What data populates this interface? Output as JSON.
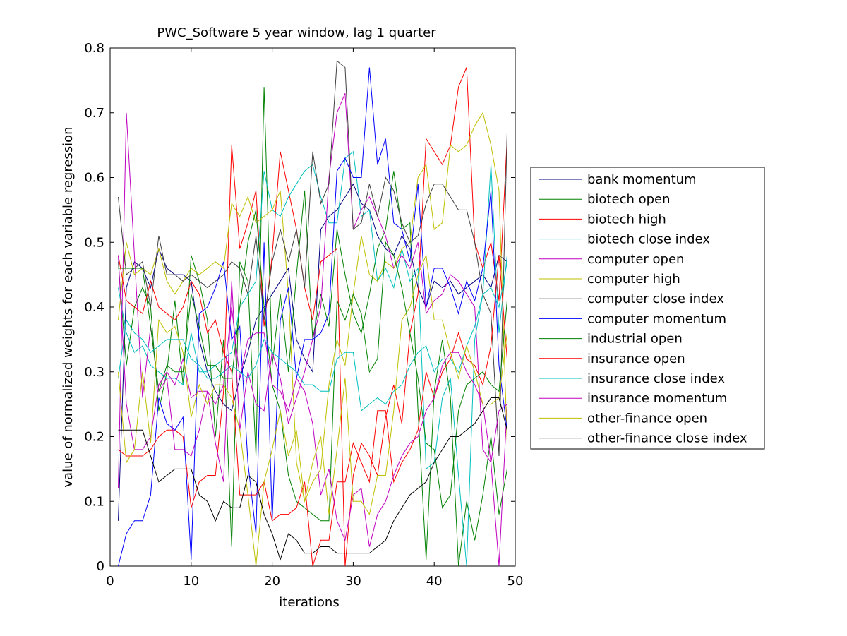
{
  "chart_data": {
    "type": "line",
    "title": "PWC_Software 5 year window, lag 1 quarter",
    "xlabel": "iterations",
    "ylabel": "value of normalized weights for each variable regression",
    "xlim": [
      0,
      50
    ],
    "ylim": [
      0,
      0.8
    ],
    "xticks": [
      0,
      10,
      20,
      30,
      40,
      50
    ],
    "yticks": [
      0,
      0.1,
      0.2,
      0.3,
      0.4,
      0.5,
      0.6,
      0.7,
      0.8
    ],
    "xtick_labels": [
      "0",
      "10",
      "20",
      "30",
      "40",
      "50"
    ],
    "ytick_labels": [
      "0",
      "0.1",
      "0.2",
      "0.3",
      "0.4",
      "0.5",
      "0.6",
      "0.7",
      "0.8"
    ],
    "grid": false,
    "legend_position": "outside-right",
    "x": [
      1,
      2,
      3,
      4,
      5,
      6,
      7,
      8,
      9,
      10,
      11,
      12,
      13,
      14,
      15,
      16,
      17,
      18,
      19,
      20,
      21,
      22,
      23,
      24,
      25,
      26,
      27,
      28,
      29,
      30,
      31,
      32,
      33,
      34,
      35,
      36,
      37,
      38,
      39,
      40,
      41,
      42,
      43,
      44,
      45,
      46,
      47,
      48,
      49
    ],
    "series": [
      {
        "name": "bank momentum",
        "color": "#000080",
        "values": [
          0.07,
          0.43,
          0.47,
          0.46,
          0.43,
          0.49,
          0.46,
          0.45,
          0.45,
          0.44,
          0.35,
          0.3,
          0.27,
          0.25,
          0.24,
          0.29,
          0.33,
          0.38,
          0.4,
          0.42,
          0.44,
          0.46,
          0.35,
          0.32,
          0.3,
          0.52,
          0.54,
          0.55,
          0.57,
          0.59,
          0.56,
          0.55,
          0.51,
          0.49,
          0.48,
          0.51,
          0.49,
          0.43,
          0.4,
          0.44,
          0.43,
          0.44,
          0.42,
          0.43,
          0.44,
          0.45,
          0.43,
          0.48,
          0.47
        ]
      },
      {
        "name": "biotech open",
        "color": "#008000",
        "values": [
          0.47,
          0.31,
          0.4,
          0.43,
          0.4,
          0.24,
          0.3,
          0.41,
          0.28,
          0.48,
          0.44,
          0.38,
          0.2,
          0.35,
          0.03,
          0.47,
          0.44,
          0.17,
          0.74,
          0.31,
          0.42,
          0.3,
          0.45,
          0.58,
          0.35,
          0.42,
          0.37,
          0.52,
          0.45,
          0.39,
          0.36,
          0.42,
          0.49,
          0.52,
          0.61,
          0.52,
          0.53,
          0.24,
          0.01,
          0.27,
          0.35,
          0.26,
          0.0,
          0.1,
          0.04,
          0.11,
          0.2,
          0.08,
          0.15
        ]
      },
      {
        "name": "biotech high",
        "color": "#ff0000",
        "values": [
          0.18,
          0.17,
          0.17,
          0.17,
          0.18,
          0.2,
          0.21,
          0.21,
          0.2,
          0.09,
          0.13,
          0.14,
          0.14,
          0.27,
          0.65,
          0.49,
          0.53,
          0.58,
          0.37,
          0.48,
          0.64,
          0.58,
          0.52,
          0.43,
          0.38,
          0.47,
          0.48,
          0.49,
          0.0,
          0.14,
          0.19,
          0.17,
          0.14,
          0.23,
          0.28,
          0.22,
          0.36,
          0.42,
          0.66,
          0.64,
          0.62,
          0.65,
          0.74,
          0.77,
          0.5,
          0.46,
          0.5,
          0.41,
          0.66
        ]
      },
      {
        "name": "biotech close index",
        "color": "#00bfbf",
        "values": [
          0.43,
          0.36,
          0.33,
          0.34,
          0.31,
          0.3,
          0.29,
          0.29,
          0.28,
          0.36,
          0.3,
          0.3,
          0.31,
          0.32,
          0.33,
          0.4,
          0.42,
          0.44,
          0.61,
          0.55,
          0.54,
          0.57,
          0.59,
          0.61,
          0.62,
          0.57,
          0.53,
          0.53,
          0.63,
          0.64,
          0.54,
          0.55,
          0.44,
          0.46,
          0.43,
          0.49,
          0.44,
          0.46,
          0.15,
          0.16,
          0.26,
          0.29,
          0.14,
          0.0,
          0.35,
          0.42,
          0.62,
          0.36,
          0.48
        ]
      },
      {
        "name": "computer open",
        "color": "#bf00bf",
        "values": [
          0.12,
          0.7,
          0.48,
          0.26,
          0.37,
          0.27,
          0.29,
          0.18,
          0.18,
          0.17,
          0.21,
          0.27,
          0.19,
          0.13,
          0.44,
          0.21,
          0.3,
          0.25,
          0.24,
          0.33,
          0.29,
          0.22,
          0.26,
          0.3,
          0.35,
          0.4,
          0.6,
          0.7,
          0.73,
          0.52,
          0.55,
          0.57,
          0.54,
          0.51,
          0.46,
          0.48,
          0.46,
          0.5,
          0.39,
          0.41,
          0.42,
          0.45,
          0.44,
          0.42,
          0.4,
          0.18,
          0.16,
          0.0,
          0.25
        ]
      },
      {
        "name": "computer high",
        "color": "#bfbf00",
        "values": [
          0.38,
          0.5,
          0.45,
          0.46,
          0.45,
          0.49,
          0.44,
          0.42,
          0.44,
          0.46,
          0.45,
          0.46,
          0.47,
          0.46,
          0.56,
          0.54,
          0.57,
          0.53,
          0.54,
          0.55,
          0.58,
          0.42,
          0.16,
          0.1,
          0.13,
          0.15,
          0.28,
          0.35,
          0.31,
          0.42,
          0.51,
          0.45,
          0.44,
          0.47,
          0.46,
          0.49,
          0.5,
          0.6,
          0.62,
          0.52,
          0.53,
          0.65,
          0.64,
          0.65,
          0.68,
          0.7,
          0.65,
          0.58,
          0.19
        ]
      },
      {
        "name": "computer close index",
        "color": "#404040",
        "values": [
          0.57,
          0.45,
          0.46,
          0.47,
          0.4,
          0.51,
          0.45,
          0.45,
          0.44,
          0.45,
          0.44,
          0.43,
          0.44,
          0.45,
          0.47,
          0.46,
          0.42,
          0.51,
          0.38,
          0.47,
          0.52,
          0.47,
          0.52,
          0.43,
          0.64,
          0.56,
          0.59,
          0.78,
          0.77,
          0.52,
          0.53,
          0.59,
          0.54,
          0.6,
          0.58,
          0.53,
          0.5,
          0.51,
          0.56,
          0.59,
          0.59,
          0.57,
          0.55,
          0.55,
          0.5,
          0.42,
          0.39,
          0.17,
          0.67
        ]
      },
      {
        "name": "computer momentum",
        "color": "#0000ff",
        "values": [
          0.0,
          0.05,
          0.07,
          0.07,
          0.11,
          0.26,
          0.22,
          0.21,
          0.23,
          0.01,
          0.39,
          0.4,
          0.43,
          0.47,
          0.35,
          0.37,
          0.16,
          0.05,
          0.5,
          0.07,
          0.38,
          0.43,
          0.29,
          0.35,
          0.35,
          0.36,
          0.39,
          0.61,
          0.63,
          0.6,
          0.6,
          0.77,
          0.62,
          0.66,
          0.53,
          0.52,
          0.47,
          0.59,
          0.4,
          0.46,
          0.46,
          0.43,
          0.39,
          0.44,
          0.41,
          0.46,
          0.58,
          0.31,
          0.21
        ]
      },
      {
        "name": "industrial open",
        "color": "#008000",
        "values": [
          0.46,
          0.46,
          0.46,
          0.46,
          0.37,
          0.27,
          0.31,
          0.3,
          0.3,
          0.42,
          0.37,
          0.31,
          0.31,
          0.29,
          0.29,
          0.4,
          0.5,
          0.55,
          0.4,
          0.28,
          0.24,
          0.14,
          0.1,
          0.09,
          0.08,
          0.07,
          0.07,
          0.41,
          0.38,
          0.42,
          0.39,
          0.3,
          0.32,
          0.5,
          0.48,
          0.43,
          0.36,
          0.29,
          0.19,
          0.18,
          0.09,
          0.11,
          0.24,
          0.28,
          0.29,
          0.3,
          0.28,
          0.27,
          0.41
        ]
      },
      {
        "name": "insurance open",
        "color": "#ff0000",
        "values": [
          0.48,
          0.41,
          0.4,
          0.39,
          0.44,
          0.4,
          0.39,
          0.38,
          0.4,
          0.44,
          0.42,
          0.36,
          0.38,
          0.33,
          0.3,
          0.11,
          0.11,
          0.11,
          0.13,
          0.07,
          0.08,
          0.08,
          0.09,
          0.13,
          0.0,
          0.04,
          0.04,
          0.13,
          0.13,
          0.19,
          0.16,
          0.13,
          0.24,
          0.24,
          0.13,
          0.16,
          0.18,
          0.21,
          0.3,
          0.26,
          0.3,
          0.32,
          0.36,
          0.32,
          0.31,
          0.28,
          0.34,
          0.48,
          0.32
        ]
      },
      {
        "name": "insurance close index",
        "color": "#00bfbf",
        "values": [
          0.29,
          0.38,
          0.36,
          0.35,
          0.33,
          0.34,
          0.35,
          0.35,
          0.35,
          0.32,
          0.31,
          0.29,
          0.29,
          0.3,
          0.31,
          0.3,
          0.29,
          0.31,
          0.35,
          0.33,
          0.32,
          0.31,
          0.3,
          0.28,
          0.28,
          0.27,
          0.27,
          0.32,
          0.33,
          0.33,
          0.24,
          0.25,
          0.26,
          0.25,
          0.27,
          0.28,
          0.31,
          0.33,
          0.34,
          0.3,
          0.32,
          0.32,
          0.3,
          0.34,
          0.37,
          0.42,
          0.43,
          0.4,
          0.47
        ]
      },
      {
        "name": "insurance momentum",
        "color": "#bf00bf",
        "values": [
          0.48,
          0.25,
          0.18,
          0.18,
          0.2,
          0.28,
          0.3,
          0.28,
          0.32,
          0.26,
          0.27,
          0.27,
          0.25,
          0.28,
          0.4,
          0.29,
          0.35,
          0.36,
          0.36,
          0.28,
          0.27,
          0.24,
          0.29,
          0.27,
          0.22,
          0.11,
          0.15,
          0.07,
          0.04,
          0.11,
          0.12,
          0.03,
          0.08,
          0.1,
          0.14,
          0.17,
          0.19,
          0.2,
          0.24,
          0.26,
          0.31,
          0.33,
          0.33,
          0.3,
          0.28,
          0.25,
          0.16,
          0.24,
          0.25
        ]
      },
      {
        "name": "other-finance open",
        "color": "#bfbf00",
        "values": [
          0.3,
          0.16,
          0.18,
          0.3,
          0.19,
          0.38,
          0.36,
          0.37,
          0.33,
          0.23,
          0.28,
          0.25,
          0.28,
          0.28,
          0.26,
          0.21,
          0.11,
          0.0,
          0.13,
          0.18,
          0.24,
          0.17,
          0.21,
          0.1,
          0.16,
          0.2,
          0.08,
          0.18,
          0.29,
          0.1,
          0.1,
          0.08,
          0.14,
          0.14,
          0.24,
          0.38,
          0.4,
          0.45,
          0.48,
          0.38,
          0.38,
          0.33,
          0.29,
          0.34,
          0.3,
          0.25,
          0.25,
          0.26,
          0.36
        ]
      },
      {
        "name": "other-finance close index",
        "color": "#000000",
        "values": [
          0.21,
          0.21,
          0.21,
          0.21,
          0.17,
          0.13,
          0.14,
          0.15,
          0.15,
          0.15,
          0.11,
          0.1,
          0.07,
          0.1,
          0.09,
          0.09,
          0.14,
          0.13,
          0.08,
          0.05,
          0.01,
          0.05,
          0.04,
          0.02,
          0.02,
          0.03,
          0.03,
          0.02,
          0.02,
          0.02,
          0.02,
          0.02,
          0.03,
          0.04,
          0.07,
          0.09,
          0.11,
          0.12,
          0.13,
          0.16,
          0.18,
          0.2,
          0.2,
          0.21,
          0.22,
          0.24,
          0.26,
          0.26,
          0.21
        ]
      }
    ]
  }
}
